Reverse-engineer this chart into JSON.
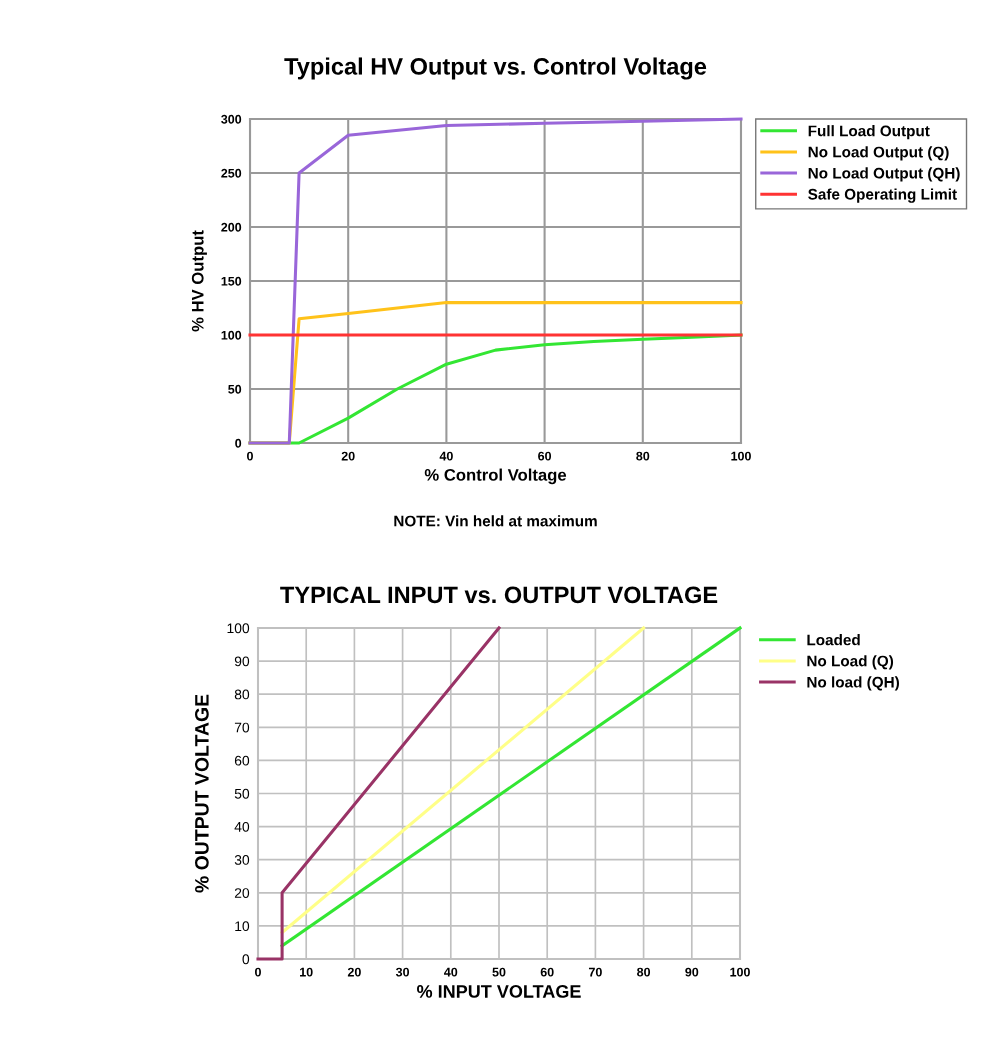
{
  "chart_data": [
    {
      "type": "line",
      "title": "Typical HV Output vs. Control Voltage",
      "xlabel": "% Control Voltage",
      "ylabel": "% HV Output",
      "annotations": [
        "NOTE: Vin held at maximum"
      ],
      "series": [
        {
          "name": "Full Load Output",
          "color": "#33e633",
          "x": [
            0,
            8,
            10,
            20,
            30,
            40,
            50,
            60,
            70,
            80,
            90,
            100
          ],
          "values": [
            0,
            0,
            0,
            23,
            50,
            73,
            86,
            91,
            94,
            96,
            98,
            100
          ]
        },
        {
          "name": "No Load Output (Q)",
          "color": "#ffc21a",
          "x": [
            0,
            8,
            10,
            20,
            40,
            100
          ],
          "values": [
            0,
            0,
            115,
            120,
            130,
            130
          ]
        },
        {
          "name": "No Load Output (QH)",
          "color": "#9966d9",
          "x": [
            0,
            8,
            10,
            20,
            40,
            60,
            80,
            100
          ],
          "values": [
            0,
            0,
            250,
            285,
            294,
            296,
            298,
            300
          ]
        },
        {
          "name": "Safe Operating Limit",
          "color": "#ff3333",
          "x": [
            0,
            100
          ],
          "values": [
            100,
            100
          ]
        }
      ],
      "xlim": [
        0,
        100
      ],
      "ylim": [
        0,
        300
      ],
      "xticks": [
        0,
        20,
        40,
        60,
        80,
        100
      ],
      "yticks": [
        0,
        50,
        100,
        150,
        200,
        250,
        300
      ],
      "grid": true,
      "legend": "right"
    },
    {
      "type": "line",
      "title": "TYPICAL INPUT vs. OUTPUT VOLTAGE",
      "xlabel": "% INPUT VOLTAGE",
      "ylabel": "% OUTPUT VOLTAGE",
      "series": [
        {
          "name": "Loaded",
          "color": "#33e633",
          "x": [
            5,
            100
          ],
          "values": [
            4,
            100
          ]
        },
        {
          "name": "No Load (Q)",
          "color": "#ffff88",
          "x": [
            5,
            80
          ],
          "values": [
            8,
            100
          ]
        },
        {
          "name": "No load (QH)",
          "color": "#993366",
          "x": [
            0,
            5,
            5,
            50
          ],
          "values": [
            0,
            0,
            20,
            100
          ]
        }
      ],
      "xlim": [
        0,
        100
      ],
      "ylim": [
        0,
        100
      ],
      "xticks": [
        0,
        10,
        20,
        30,
        40,
        50,
        60,
        70,
        80,
        90,
        100
      ],
      "yticks": [
        0,
        10,
        20,
        30,
        40,
        50,
        60,
        70,
        80,
        90,
        100
      ],
      "grid": true,
      "legend": "right"
    }
  ]
}
